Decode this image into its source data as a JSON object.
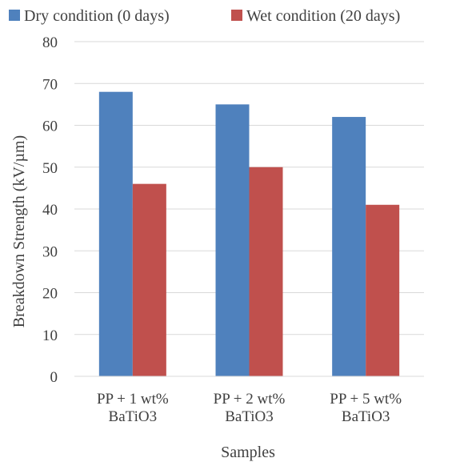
{
  "chart_data": {
    "type": "bar",
    "title": "",
    "xlabel": "Samples",
    "ylabel": "Breakdown Strength (kV/µm)",
    "ylim": [
      0,
      80
    ],
    "yticks": [
      0,
      10,
      20,
      30,
      40,
      50,
      60,
      70,
      80
    ],
    "grid": true,
    "legend_position": "top",
    "categories": [
      [
        "PP + 1 wt%",
        "BaTiO3"
      ],
      [
        "PP + 2 wt%",
        "BaTiO3"
      ],
      [
        "PP + 5 wt%",
        "BaTiO3"
      ]
    ],
    "series": [
      {
        "name": "Dry condition (0 days)",
        "color": "#4f81bd",
        "values": [
          68,
          65,
          62
        ]
      },
      {
        "name": "Wet condition (20 days)",
        "color": "#c0504d",
        "values": [
          46,
          50,
          41
        ]
      }
    ]
  }
}
